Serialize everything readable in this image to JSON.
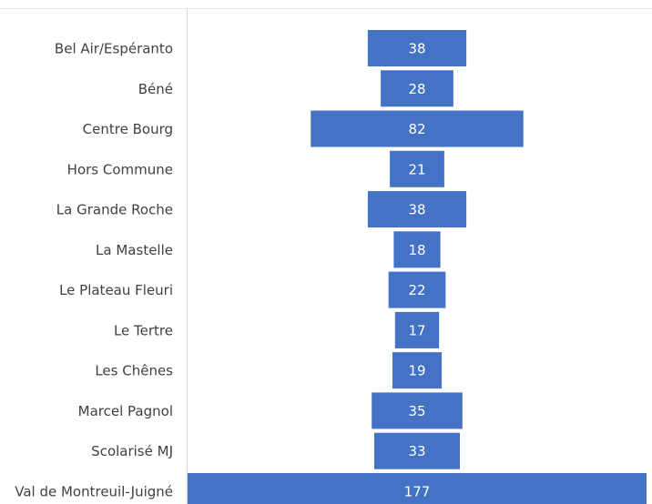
{
  "chart_data": {
    "type": "funnel",
    "categories": [
      "Bel Air/Espéranto",
      "Béné",
      "Centre Bourg",
      "Hors Commune",
      "La Grande Roche",
      "La Mastelle",
      "Le Plateau Fleuri",
      "Le Tertre",
      "Les Chênes",
      "Marcel Pagnol",
      "Scolarisé MJ",
      "Val de Montreuil-Juigné"
    ],
    "values": [
      38,
      28,
      82,
      21,
      38,
      18,
      22,
      17,
      19,
      35,
      33,
      177
    ],
    "color": "#4472c4"
  }
}
